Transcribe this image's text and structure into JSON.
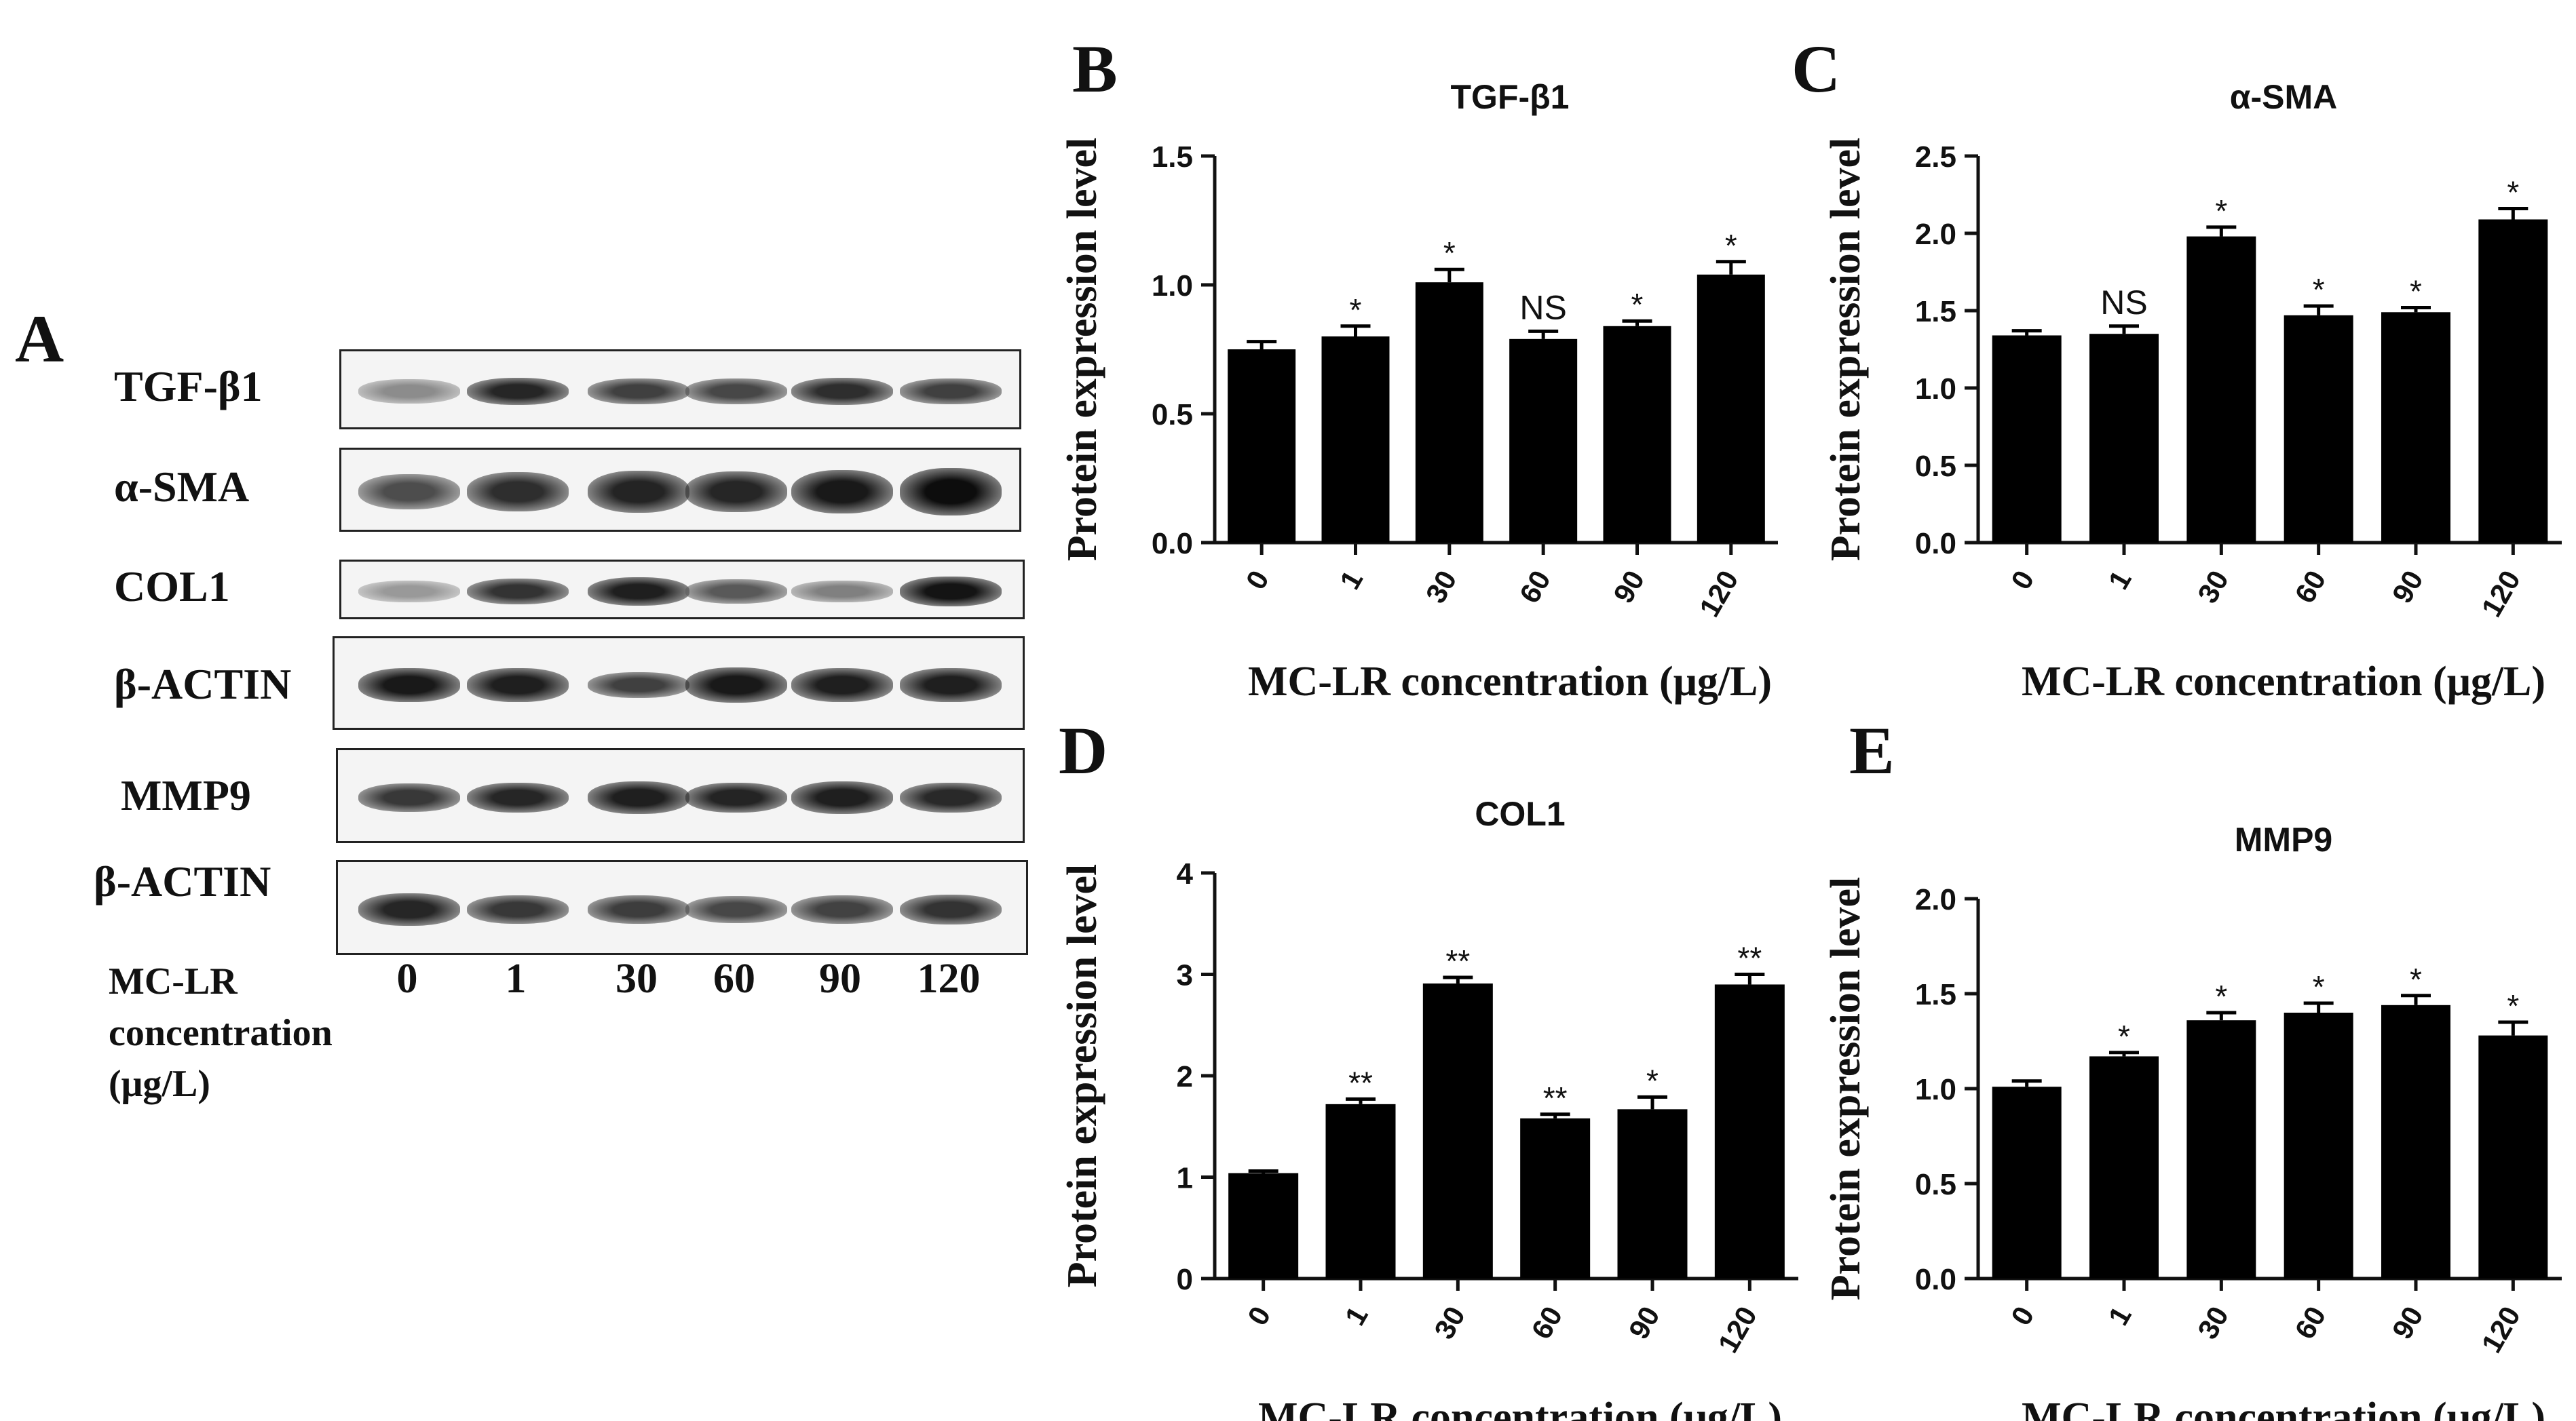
{
  "panel_a": {
    "letter": "A",
    "blots": [
      {
        "label": "TGF-β1",
        "intensities": [
          0.45,
          0.85,
          0.75,
          0.72,
          0.82,
          0.75
        ],
        "thickness": [
          0.3,
          0.34,
          0.32,
          0.32,
          0.34,
          0.32
        ]
      },
      {
        "label": "α-SMA",
        "intensities": [
          0.7,
          0.82,
          0.86,
          0.85,
          0.9,
          0.95
        ],
        "thickness": [
          0.42,
          0.46,
          0.5,
          0.48,
          0.52,
          0.56
        ]
      },
      {
        "label": "COL1",
        "intensities": [
          0.4,
          0.8,
          0.88,
          0.65,
          0.5,
          0.92
        ],
        "thickness": [
          0.36,
          0.44,
          0.48,
          0.4,
          0.36,
          0.5
        ]
      },
      {
        "label": "β-ACTIN",
        "intensities": [
          0.9,
          0.88,
          0.75,
          0.9,
          0.88,
          0.88
        ],
        "thickness": [
          0.36,
          0.36,
          0.28,
          0.38,
          0.36,
          0.36
        ]
      },
      {
        "label": "MMP9",
        "intensities": [
          0.78,
          0.85,
          0.88,
          0.86,
          0.88,
          0.84
        ],
        "thickness": [
          0.3,
          0.32,
          0.34,
          0.32,
          0.34,
          0.32
        ]
      },
      {
        "label": "β-ACTIN",
        "intensities": [
          0.85,
          0.78,
          0.76,
          0.72,
          0.74,
          0.8
        ],
        "thickness": [
          0.34,
          0.3,
          0.3,
          0.28,
          0.3,
          0.32
        ]
      }
    ],
    "concentration_label": "MC-LR concentration (μg/L)",
    "lanes": [
      "0",
      "1",
      "30",
      "60",
      "90",
      "120"
    ]
  },
  "chart_data": [
    {
      "panel": "B",
      "type": "bar",
      "title": "TGF-β1",
      "xlabel": "MC-LR concentration (μg/L)",
      "ylabel": "Protein expression level",
      "categories": [
        "0",
        "1",
        "30",
        "60",
        "90",
        "120"
      ],
      "values": [
        0.75,
        0.8,
        1.01,
        0.79,
        0.84,
        1.04
      ],
      "errors": [
        0.03,
        0.04,
        0.05,
        0.03,
        0.02,
        0.05
      ],
      "significance": [
        "",
        "*",
        "*",
        "NS",
        "*",
        "*"
      ],
      "ylim": [
        0,
        1.5
      ],
      "yticks": [
        "0.0",
        "0.5",
        "1.0",
        "1.5"
      ]
    },
    {
      "panel": "C",
      "type": "bar",
      "title": "α-SMA",
      "xlabel": "MC-LR concentration (μg/L)",
      "ylabel": "Protein expression level",
      "categories": [
        "0",
        "1",
        "30",
        "60",
        "90",
        "120"
      ],
      "values": [
        1.34,
        1.35,
        1.98,
        1.47,
        1.49,
        2.09
      ],
      "errors": [
        0.03,
        0.05,
        0.06,
        0.06,
        0.03,
        0.07
      ],
      "significance": [
        "",
        "NS",
        "*",
        "*",
        "*",
        "*"
      ],
      "ylim": [
        0,
        2.5
      ],
      "yticks": [
        "0.0",
        "0.5",
        "1.0",
        "1.5",
        "2.0",
        "2.5"
      ]
    },
    {
      "panel": "D",
      "type": "bar",
      "title": "COL1",
      "xlabel": "MC-LR concentration (μg/L)",
      "ylabel": "Protein expression level",
      "categories": [
        "0",
        "1",
        "30",
        "60",
        "90",
        "120"
      ],
      "values": [
        1.04,
        1.72,
        2.91,
        1.58,
        1.67,
        2.9
      ],
      "errors": [
        0.02,
        0.05,
        0.06,
        0.04,
        0.12,
        0.1
      ],
      "significance": [
        "",
        "**",
        "**",
        "**",
        "*",
        "**"
      ],
      "ylim": [
        0,
        4
      ],
      "yticks": [
        "0",
        "1",
        "2",
        "3",
        "4"
      ]
    },
    {
      "panel": "E",
      "type": "bar",
      "title": "MMP9",
      "xlabel": "MC-LR concentration (μg/L)",
      "ylabel": "Protein expression level",
      "categories": [
        "0",
        "1",
        "30",
        "60",
        "90",
        "120"
      ],
      "values": [
        1.01,
        1.17,
        1.36,
        1.4,
        1.44,
        1.28
      ],
      "errors": [
        0.03,
        0.02,
        0.04,
        0.05,
        0.05,
        0.07
      ],
      "significance": [
        "",
        "*",
        "*",
        "*",
        "*",
        "*"
      ],
      "ylim": [
        0,
        2.0
      ],
      "yticks": [
        "0.0",
        "0.5",
        "1.0",
        "1.5",
        "2.0"
      ]
    }
  ]
}
